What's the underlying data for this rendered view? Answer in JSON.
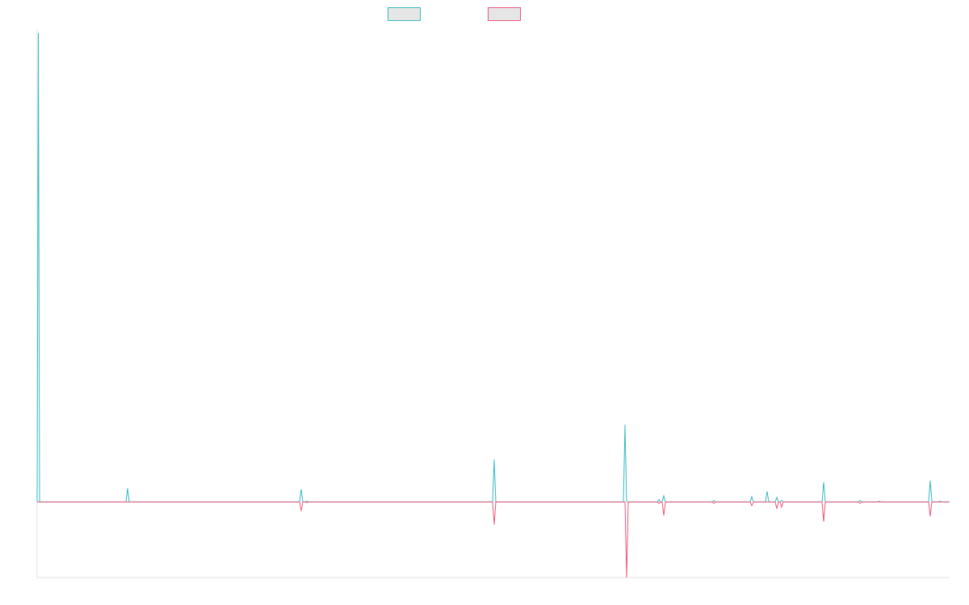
{
  "chart_data": {
    "type": "line",
    "title": "",
    "xlabel": "",
    "ylabel": "",
    "legend_position": "top-center",
    "grid": false,
    "xlim": [
      0,
      1130
    ],
    "ylim": [
      -100,
      625
    ],
    "series": [
      {
        "name": "",
        "color": "#36b9c0",
        "fill": "#e6e6e6",
        "points": [
          [
            0,
            0
          ],
          [
            1.5,
            620
          ],
          [
            3,
            0
          ],
          [
            110,
            0
          ],
          [
            112,
            18
          ],
          [
            114,
            0
          ],
          [
            325,
            0
          ],
          [
            327,
            17
          ],
          [
            329,
            0
          ],
          [
            332,
            0
          ],
          [
            334,
            1
          ],
          [
            336,
            0
          ],
          [
            564,
            0
          ],
          [
            566,
            56
          ],
          [
            568,
            0
          ],
          [
            726,
            0
          ],
          [
            728,
            102
          ],
          [
            730,
            0
          ],
          [
            768,
            0
          ],
          [
            770,
            3
          ],
          [
            772,
            0
          ],
          [
            774,
            0
          ],
          [
            776,
            8
          ],
          [
            778,
            0
          ],
          [
            836,
            0
          ],
          [
            838,
            2
          ],
          [
            840,
            0
          ],
          [
            883,
            0
          ],
          [
            885,
            7
          ],
          [
            887,
            0
          ],
          [
            902,
            0
          ],
          [
            904,
            14
          ],
          [
            906,
            0
          ],
          [
            914,
            0
          ],
          [
            916,
            6
          ],
          [
            918,
            0
          ],
          [
            920,
            0
          ],
          [
            922,
            2
          ],
          [
            924,
            0
          ],
          [
            972,
            0
          ],
          [
            974,
            26
          ],
          [
            976,
            0
          ],
          [
            1017,
            0
          ],
          [
            1019,
            2
          ],
          [
            1021,
            0
          ],
          [
            1041,
            0
          ],
          [
            1043,
            1
          ],
          [
            1045,
            0
          ],
          [
            1104,
            0
          ],
          [
            1106,
            28
          ],
          [
            1108,
            0
          ],
          [
            1116,
            0
          ],
          [
            1118,
            1
          ],
          [
            1120,
            0
          ],
          [
            1130,
            0
          ]
        ]
      },
      {
        "name": "",
        "color": "#f0567c",
        "fill": "#e6e6e6",
        "points": [
          [
            0,
            0
          ],
          [
            325,
            0
          ],
          [
            327,
            -12
          ],
          [
            329,
            0
          ],
          [
            332,
            0
          ],
          [
            334,
            -1
          ],
          [
            336,
            0
          ],
          [
            564,
            0
          ],
          [
            566,
            -30
          ],
          [
            568,
            0
          ],
          [
            728,
            0
          ],
          [
            730,
            -100
          ],
          [
            732,
            0
          ],
          [
            768,
            0
          ],
          [
            770,
            -2
          ],
          [
            772,
            0
          ],
          [
            774,
            0
          ],
          [
            776,
            -18
          ],
          [
            778,
            0
          ],
          [
            836,
            0
          ],
          [
            838,
            -2
          ],
          [
            840,
            0
          ],
          [
            883,
            0
          ],
          [
            885,
            -5
          ],
          [
            887,
            0
          ],
          [
            914,
            0
          ],
          [
            916,
            -9
          ],
          [
            918,
            0
          ],
          [
            920,
            0
          ],
          [
            922,
            -7
          ],
          [
            924,
            0
          ],
          [
            972,
            0
          ],
          [
            974,
            -26
          ],
          [
            976,
            0
          ],
          [
            1017,
            0
          ],
          [
            1019,
            -2
          ],
          [
            1021,
            0
          ],
          [
            1104,
            0
          ],
          [
            1106,
            -19
          ],
          [
            1108,
            0
          ],
          [
            1130,
            0
          ]
        ]
      }
    ]
  }
}
